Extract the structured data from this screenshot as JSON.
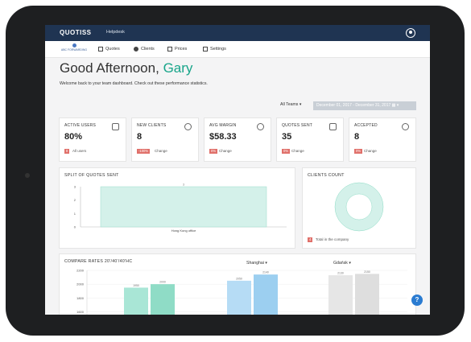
{
  "topbar": {
    "logo": "QUOTISS",
    "helpdesk": "Helpdesk"
  },
  "nav": {
    "company": "ABC FORWARDING",
    "items": [
      {
        "label": "Quotes"
      },
      {
        "label": "Clients"
      },
      {
        "label": "Prices"
      },
      {
        "label": "Settings"
      }
    ]
  },
  "greeting": {
    "prefix": "Good Afternoon,",
    "name": "Gary"
  },
  "subtext": "Welcome back to your team dashboard. Check out these performance statistics.",
  "filters": {
    "team": "All Teams ▾",
    "date_range": "December 01, 2017 - December 31, 2017 ▦ ▾"
  },
  "stats": [
    {
      "label": "ACTIVE USERS",
      "value": "80%",
      "badge": "8",
      "note": "All users",
      "badge_color": "#e0706a"
    },
    {
      "label": "NEW CLIENTS",
      "value": "8",
      "badge": "-100%",
      "note": "Change",
      "badge_color": "#e0706a"
    },
    {
      "label": "AVG MARGIN",
      "value": "$58.33",
      "badge": "0%",
      "note": "Change",
      "badge_color": "#e0706a"
    },
    {
      "label": "QUOTES SENT",
      "value": "35",
      "badge": "0%",
      "note": "Change",
      "badge_color": "#e0706a"
    },
    {
      "label": "ACCEPTED",
      "value": "8",
      "badge": "0%",
      "note": "Change",
      "badge_color": "#e0706a"
    }
  ],
  "split_panel": {
    "title": "SPLIT OF QUOTES SENT"
  },
  "clients_panel": {
    "title": "CLIENTS COUNT",
    "badge": "4",
    "note": "Total in the company"
  },
  "compare_panel": {
    "title": "COMPARE RATES 20'/40'/40'HC",
    "select1": "Shanghai ▾",
    "select2": "Gdańsk ▾"
  },
  "help": "?",
  "colors": {
    "accent": "#18a58a",
    "navy": "#1f3452",
    "badge": "#e0706a",
    "teal_fill": "#d4f1ea",
    "blue_fill": "#9ccff0",
    "green_fill": "#a9e6d6",
    "grey_fill": "#dedede"
  },
  "chart_data": [
    {
      "type": "bar",
      "title": "SPLIT OF QUOTES SENT",
      "categories": [
        "Hong Kong office"
      ],
      "values": [
        3
      ],
      "ylim": [
        0,
        3
      ],
      "yticks": [
        0,
        1,
        2,
        3
      ],
      "data_labels": [
        "3"
      ]
    },
    {
      "type": "pie",
      "title": "CLIENTS COUNT",
      "labels": [
        "Total in the company"
      ],
      "values": [
        4
      ],
      "donut": true
    },
    {
      "type": "bar",
      "title": "COMPARE RATES 20'/40'/40'HC",
      "yticks": [
        1600,
        1800,
        2000,
        2200
      ],
      "ylim": [
        1500,
        2200
      ],
      "groups": [
        {
          "values": [
            1950,
            2000
          ],
          "labels": [
            "1950",
            "2000"
          ],
          "colors": [
            "#a9e6d6",
            "#8fdcc6"
          ]
        },
        {
          "values": [
            2050,
            2140
          ],
          "labels": [
            "2050",
            "2140"
          ],
          "colors": [
            "#b6dcf5",
            "#9ccff0"
          ]
        },
        {
          "values": [
            2130,
            2150
          ],
          "labels": [
            "2130",
            "2150"
          ],
          "colors": [
            "#e6e6e6",
            "#dedede"
          ]
        }
      ]
    }
  ]
}
